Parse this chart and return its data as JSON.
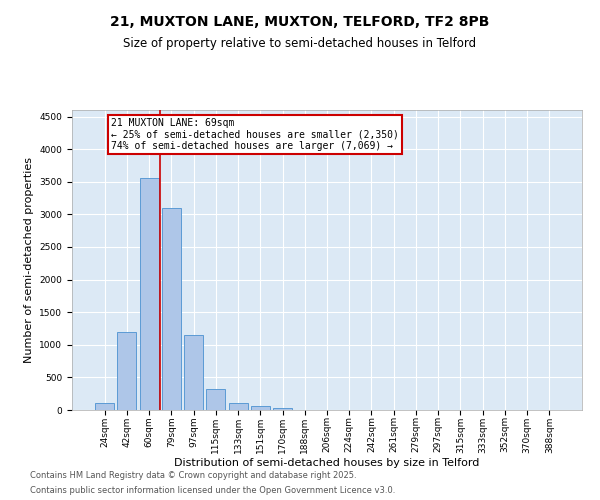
{
  "title_line1": "21, MUXTON LANE, MUXTON, TELFORD, TF2 8PB",
  "title_line2": "Size of property relative to semi-detached houses in Telford",
  "xlabel": "Distribution of semi-detached houses by size in Telford",
  "ylabel": "Number of semi-detached properties",
  "categories": [
    "24sqm",
    "42sqm",
    "60sqm",
    "79sqm",
    "97sqm",
    "115sqm",
    "133sqm",
    "151sqm",
    "170sqm",
    "188sqm",
    "206sqm",
    "224sqm",
    "242sqm",
    "261sqm",
    "279sqm",
    "297sqm",
    "315sqm",
    "333sqm",
    "352sqm",
    "370sqm",
    "388sqm"
  ],
  "values": [
    100,
    1200,
    3550,
    3100,
    1150,
    320,
    100,
    60,
    30,
    5,
    2,
    1,
    0,
    0,
    0,
    0,
    0,
    0,
    0,
    0,
    0
  ],
  "bar_color": "#aec6e8",
  "bar_edge_color": "#5b9bd5",
  "vline_x": 2.5,
  "vline_color": "#cc0000",
  "annotation_title": "21 MUXTON LANE: 69sqm",
  "annotation_line2": "← 25% of semi-detached houses are smaller (2,350)",
  "annotation_line3": "74% of semi-detached houses are larger (7,069) →",
  "annotation_box_color": "#cc0000",
  "ylim": [
    0,
    4600
  ],
  "yticks": [
    0,
    500,
    1000,
    1500,
    2000,
    2500,
    3000,
    3500,
    4000,
    4500
  ],
  "background_color": "#dce9f5",
  "footer_line1": "Contains HM Land Registry data © Crown copyright and database right 2025.",
  "footer_line2": "Contains public sector information licensed under the Open Government Licence v3.0.",
  "title_fontsize": 10,
  "subtitle_fontsize": 8.5,
  "axis_label_fontsize": 8,
  "tick_fontsize": 6.5,
  "annotation_fontsize": 7,
  "footer_fontsize": 6
}
